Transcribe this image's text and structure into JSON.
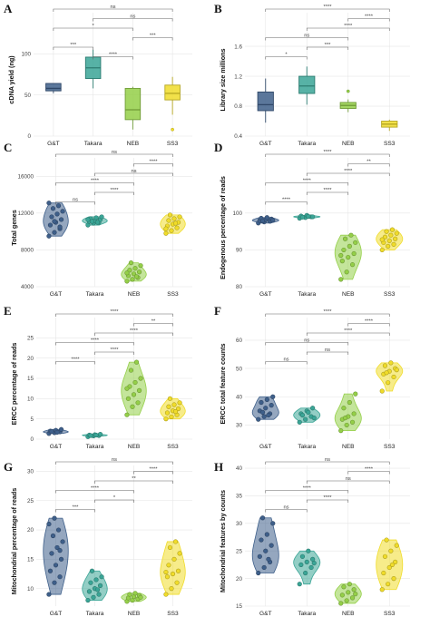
{
  "colors": {
    "G&T": "#3e5f8a",
    "Takara": "#3aa596",
    "NEB": "#94cf48",
    "SS3": "#f0dc2a"
  },
  "chart_data": [
    {
      "letter": "A",
      "type": "box",
      "ylabel": "cDNA yield (ng)",
      "categories": [
        "G&T",
        "Takara",
        "NEB",
        "SS3"
      ],
      "ylim": [
        0,
        150
      ],
      "yticks": [
        0,
        50,
        100
      ],
      "boxes": [
        {
          "cat": "G&T",
          "q1": 55,
          "med": 58,
          "q3": 64,
          "wlo": 52,
          "whi": 64,
          "outliers": []
        },
        {
          "cat": "Takara",
          "q1": 70,
          "med": 83,
          "q3": 96,
          "wlo": 58,
          "whi": 105,
          "outliers": []
        },
        {
          "cat": "NEB",
          "q1": 20,
          "med": 32,
          "q3": 58,
          "wlo": 8,
          "whi": 60,
          "outliers": []
        },
        {
          "cat": "SS3",
          "q1": 44,
          "med": 52,
          "q3": 62,
          "wlo": 26,
          "whi": 72,
          "outliers": [
            8
          ]
        }
      ],
      "sig": [
        {
          "a": 0,
          "b": 3,
          "label": "ns"
        },
        {
          "a": 1,
          "b": 3,
          "label": "ns"
        },
        {
          "a": 0,
          "b": 2,
          "label": "*"
        },
        {
          "a": 2,
          "b": 3,
          "label": "***"
        },
        {
          "a": 0,
          "b": 1,
          "label": "***"
        },
        {
          "a": 1,
          "b": 2,
          "label": "****"
        }
      ]
    },
    {
      "letter": "B",
      "type": "box",
      "ylabel": "Library size millions",
      "categories": [
        "G&T",
        "Takara",
        "NEB",
        "SS3"
      ],
      "ylim": [
        0.4,
        2.05
      ],
      "yticks": [
        0.4,
        0.8,
        1.2,
        1.6
      ],
      "boxes": [
        {
          "cat": "G&T",
          "q1": 0.74,
          "med": 0.82,
          "q3": 0.99,
          "wlo": 0.58,
          "whi": 1.17,
          "outliers": []
        },
        {
          "cat": "Takara",
          "q1": 0.97,
          "med": 1.07,
          "q3": 1.2,
          "wlo": 0.82,
          "whi": 1.33,
          "outliers": []
        },
        {
          "cat": "NEB",
          "q1": 0.77,
          "med": 0.81,
          "q3": 0.85,
          "wlo": 0.72,
          "whi": 0.89,
          "outliers": [
            1.0
          ]
        },
        {
          "cat": "SS3",
          "q1": 0.52,
          "med": 0.56,
          "q3": 0.6,
          "wlo": 0.47,
          "whi": 0.62,
          "outliers": []
        }
      ],
      "sig": [
        {
          "a": 0,
          "b": 3,
          "label": "****"
        },
        {
          "a": 2,
          "b": 3,
          "label": "****"
        },
        {
          "a": 1,
          "b": 3,
          "label": "****"
        },
        {
          "a": 0,
          "b": 2,
          "label": "ns"
        },
        {
          "a": 1,
          "b": 2,
          "label": "***"
        },
        {
          "a": 0,
          "b": 1,
          "label": "*"
        }
      ]
    },
    {
      "letter": "C",
      "type": "violin",
      "ylabel": "Total genes",
      "categories": [
        "G&T",
        "Takara",
        "NEB",
        "SS3"
      ],
      "ylim": [
        4000,
        18000
      ],
      "yticks": [
        4000,
        8000,
        12000,
        16000
      ],
      "groups": [
        {
          "cat": "G&T",
          "points": [
            9500,
            9900,
            10300,
            10700,
            11000,
            11300,
            11600,
            11900,
            12200,
            12500,
            12800,
            13100,
            11100,
            10500
          ]
        },
        {
          "cat": "Takara",
          "points": [
            10700,
            10900,
            11000,
            11100,
            11200,
            11300,
            11400,
            11500,
            11600,
            11100,
            11000,
            11300
          ]
        },
        {
          "cat": "NEB",
          "points": [
            4600,
            4800,
            5000,
            5200,
            5400,
            5600,
            5800,
            6000,
            6300,
            6600,
            5100,
            5500
          ]
        },
        {
          "cat": "SS3",
          "points": [
            9800,
            10100,
            10400,
            10600,
            10800,
            11000,
            11200,
            11400,
            11600,
            11800,
            10900,
            10300
          ]
        }
      ],
      "sig": [
        {
          "a": 0,
          "b": 3,
          "label": "ns"
        },
        {
          "a": 2,
          "b": 3,
          "label": "****"
        },
        {
          "a": 1,
          "b": 3,
          "label": "ns"
        },
        {
          "a": 0,
          "b": 2,
          "label": "****"
        },
        {
          "a": 1,
          "b": 2,
          "label": "****"
        },
        {
          "a": 0,
          "b": 1,
          "label": "ns"
        }
      ]
    },
    {
      "letter": "D",
      "type": "violin",
      "ylabel": "Endogenous percentage of reads",
      "categories": [
        "G&T",
        "Takara",
        "NEB",
        "SS3"
      ],
      "ylim": [
        80,
        115
      ],
      "yticks": [
        80,
        90,
        100
      ],
      "groups": [
        {
          "cat": "G&T",
          "points": [
            97.3,
            97.6,
            97.8,
            98.0,
            98.2,
            98.4,
            98.6,
            98.8,
            98.1,
            97.9
          ]
        },
        {
          "cat": "Takara",
          "points": [
            98.6,
            98.8,
            99.0,
            99.2,
            99.4,
            99.0,
            98.9,
            99.1
          ]
        },
        {
          "cat": "NEB",
          "points": [
            82,
            84,
            86,
            87,
            88,
            89,
            90,
            91,
            92,
            93,
            94,
            88.5
          ]
        },
        {
          "cat": "SS3",
          "points": [
            90,
            91,
            91.5,
            92,
            92.5,
            93,
            93.5,
            94,
            94.5,
            95,
            95.5,
            92.8
          ]
        }
      ],
      "sig": [
        {
          "a": 0,
          "b": 3,
          "label": "****"
        },
        {
          "a": 2,
          "b": 3,
          "label": "**"
        },
        {
          "a": 1,
          "b": 3,
          "label": "****"
        },
        {
          "a": 0,
          "b": 2,
          "label": "****"
        },
        {
          "a": 1,
          "b": 2,
          "label": "****"
        },
        {
          "a": 0,
          "b": 1,
          "label": "****"
        }
      ]
    },
    {
      "letter": "E",
      "type": "violin",
      "ylabel": "ERCC percentage of reads",
      "categories": [
        "G&T",
        "Takara",
        "NEB",
        "SS3"
      ],
      "ylim": [
        0,
        30
      ],
      "yticks": [
        0,
        5,
        10,
        15,
        20,
        25
      ],
      "groups": [
        {
          "cat": "G&T",
          "points": [
            1.4,
            1.6,
            1.8,
            2.0,
            2.2,
            2.4,
            1.9,
            1.7
          ]
        },
        {
          "cat": "Takara",
          "points": [
            0.6,
            0.8,
            0.9,
            1.0,
            1.1,
            1.2,
            0.9,
            1.0
          ]
        },
        {
          "cat": "NEB",
          "points": [
            6,
            8,
            9,
            10,
            11,
            12,
            13,
            14,
            15,
            17,
            19,
            12.5
          ]
        },
        {
          "cat": "SS3",
          "points": [
            5,
            5.5,
            6,
            6.5,
            7,
            7.5,
            8,
            8.5,
            9,
            10,
            6.8
          ]
        }
      ],
      "sig": [
        {
          "a": 0,
          "b": 3,
          "label": "****"
        },
        {
          "a": 2,
          "b": 3,
          "label": "**"
        },
        {
          "a": 1,
          "b": 3,
          "label": "****"
        },
        {
          "a": 0,
          "b": 2,
          "label": "****"
        },
        {
          "a": 1,
          "b": 2,
          "label": "****"
        },
        {
          "a": 0,
          "b": 1,
          "label": "****"
        }
      ]
    },
    {
      "letter": "F",
      "type": "violin",
      "ylabel": "ERCC total feature counts",
      "categories": [
        "G&T",
        "Takara",
        "NEB",
        "SS3"
      ],
      "ylim": [
        25,
        68
      ],
      "yticks": [
        30,
        40,
        50,
        60
      ],
      "groups": [
        {
          "cat": "G&T",
          "points": [
            32,
            33,
            34,
            35,
            36,
            37,
            38,
            39,
            40,
            34.5,
            33.5
          ]
        },
        {
          "cat": "Takara",
          "points": [
            31,
            32,
            33,
            34,
            35,
            36,
            33.5,
            34.5,
            32.5
          ]
        },
        {
          "cat": "NEB",
          "points": [
            28,
            30,
            31,
            32,
            33,
            34,
            36,
            38,
            41,
            32.5
          ]
        },
        {
          "cat": "SS3",
          "points": [
            42,
            45,
            47,
            48,
            49,
            50,
            51,
            52,
            49.5,
            48.5
          ]
        }
      ],
      "sig": [
        {
          "a": 0,
          "b": 3,
          "label": "****"
        },
        {
          "a": 2,
          "b": 3,
          "label": "****"
        },
        {
          "a": 1,
          "b": 3,
          "label": "****"
        },
        {
          "a": 0,
          "b": 2,
          "label": "ns"
        },
        {
          "a": 1,
          "b": 2,
          "label": "ns"
        },
        {
          "a": 0,
          "b": 1,
          "label": "ns"
        }
      ]
    },
    {
      "letter": "G",
      "type": "violin",
      "ylabel": "Mitochondrial percentage of reads",
      "categories": [
        "G&T",
        "Takara",
        "NEB",
        "SS3"
      ],
      "ylim": [
        7,
        31
      ],
      "yticks": [
        10,
        15,
        20,
        25,
        30
      ],
      "groups": [
        {
          "cat": "G&T",
          "points": [
            9,
            11,
            12,
            13,
            14,
            15,
            16,
            17,
            18,
            19,
            20,
            21,
            22,
            16.5
          ]
        },
        {
          "cat": "Takara",
          "points": [
            8,
            8.5,
            9,
            9.5,
            10,
            10.5,
            11,
            11.5,
            12,
            13,
            9.8
          ]
        },
        {
          "cat": "NEB",
          "points": [
            7.8,
            8.0,
            8.2,
            8.4,
            8.6,
            8.8,
            9.0,
            9.2,
            8.5
          ]
        },
        {
          "cat": "SS3",
          "points": [
            9,
            10,
            11,
            12,
            12.5,
            13,
            14,
            15,
            16,
            17,
            18,
            12.8
          ]
        }
      ],
      "sig": [
        {
          "a": 0,
          "b": 3,
          "label": "ns"
        },
        {
          "a": 2,
          "b": 3,
          "label": "****"
        },
        {
          "a": 1,
          "b": 3,
          "label": "**"
        },
        {
          "a": 0,
          "b": 2,
          "label": "****"
        },
        {
          "a": 1,
          "b": 2,
          "label": "*"
        },
        {
          "a": 0,
          "b": 1,
          "label": "***"
        }
      ]
    },
    {
      "letter": "H",
      "type": "violin",
      "ylabel": "Mitochondrial features by counts",
      "categories": [
        "G&T",
        "Takara",
        "NEB",
        "SS3"
      ],
      "ylim": [
        15,
        40.5
      ],
      "yticks": [
        15,
        20,
        25,
        30,
        35,
        40
      ],
      "groups": [
        {
          "cat": "G&T",
          "points": [
            21,
            22,
            23,
            24,
            25,
            26,
            27,
            28,
            30,
            31,
            23.5
          ]
        },
        {
          "cat": "Takara",
          "points": [
            19,
            21,
            22,
            22.5,
            23,
            23.5,
            24,
            25,
            22.8
          ]
        },
        {
          "cat": "NEB",
          "points": [
            15.5,
            16,
            16.5,
            17,
            17.5,
            18,
            18.5,
            19,
            17.2
          ]
        },
        {
          "cat": "SS3",
          "points": [
            18,
            19,
            20,
            21,
            22,
            23,
            24,
            25,
            26,
            27,
            22.5
          ]
        }
      ],
      "sig": [
        {
          "a": 0,
          "b": 3,
          "label": "ns"
        },
        {
          "a": 2,
          "b": 3,
          "label": "****"
        },
        {
          "a": 1,
          "b": 3,
          "label": "ns"
        },
        {
          "a": 0,
          "b": 2,
          "label": "****"
        },
        {
          "a": 1,
          "b": 2,
          "label": "****"
        },
        {
          "a": 0,
          "b": 1,
          "label": "ns"
        }
      ]
    }
  ]
}
